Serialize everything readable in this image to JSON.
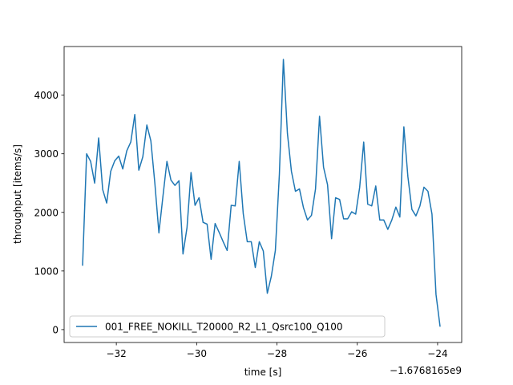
{
  "chart_data": {
    "type": "line",
    "title": "",
    "xlabel": "time [s]",
    "ylabel": "throughput [items/s]",
    "x_offset_label": "−1.6768165e9",
    "xlim": [
      -33.3,
      -23.4
    ],
    "ylim": [
      -220,
      4830
    ],
    "x_ticks": [
      -32,
      -30,
      -28,
      -26,
      -24
    ],
    "x_tick_labels": [
      "−32",
      "−30",
      "−28",
      "−26",
      "−24"
    ],
    "y_ticks": [
      0,
      1000,
      2000,
      3000,
      4000
    ],
    "y_tick_labels": [
      "0",
      "1000",
      "2000",
      "3000",
      "4000"
    ],
    "grid": false,
    "legend_position": "lower-left",
    "series": [
      {
        "name": "001_FREE_NOKILL_T20000_R2_L1_Qsrc100_Q100",
        "color": "#1f77b4",
        "x": [
          -32.84,
          -32.74,
          -32.64,
          -32.54,
          -32.44,
          -32.34,
          -32.24,
          -32.14,
          -32.04,
          -31.94,
          -31.84,
          -31.74,
          -31.64,
          -31.54,
          -31.44,
          -31.34,
          -31.24,
          -31.14,
          -31.04,
          -30.94,
          -30.84,
          -30.74,
          -30.64,
          -30.54,
          -30.44,
          -30.34,
          -30.24,
          -30.14,
          -30.04,
          -29.94,
          -29.84,
          -29.74,
          -29.64,
          -29.54,
          -29.44,
          -29.34,
          -29.24,
          -29.14,
          -29.04,
          -28.94,
          -28.84,
          -28.74,
          -28.64,
          -28.54,
          -28.44,
          -28.34,
          -28.24,
          -28.14,
          -28.04,
          -27.94,
          -27.84,
          -27.74,
          -27.64,
          -27.54,
          -27.44,
          -27.34,
          -27.24,
          -27.14,
          -27.04,
          -26.94,
          -26.84,
          -26.74,
          -26.64,
          -26.54,
          -26.44,
          -26.34,
          -26.24,
          -26.14,
          -26.04,
          -25.94,
          -25.84,
          -25.74,
          -25.64,
          -25.54,
          -25.44,
          -25.34,
          -25.24,
          -25.14,
          -25.04,
          -24.94,
          -24.84,
          -24.74,
          -24.64,
          -24.54,
          -24.44,
          -24.34,
          -24.24,
          -24.14,
          -24.04,
          -23.94
        ],
        "y": [
          1100,
          3000,
          2870,
          2500,
          3270,
          2390,
          2160,
          2700,
          2880,
          2960,
          2740,
          3050,
          3200,
          3670,
          2720,
          2950,
          3490,
          3220,
          2490,
          1650,
          2270,
          2870,
          2550,
          2460,
          2540,
          1290,
          1740,
          2680,
          2120,
          2250,
          1830,
          1800,
          1200,
          1810,
          1660,
          1500,
          1350,
          2120,
          2110,
          2870,
          1980,
          1500,
          1500,
          1060,
          1500,
          1340,
          620,
          910,
          1350,
          2650,
          4610,
          3350,
          2700,
          2360,
          2400,
          2080,
          1870,
          1950,
          2400,
          3640,
          2770,
          2470,
          1550,
          2250,
          2220,
          1890,
          1890,
          2010,
          1970,
          2430,
          3200,
          2140,
          2110,
          2450,
          1870,
          1870,
          1710,
          1870,
          2090,
          1920,
          3460,
          2610,
          2050,
          1940,
          2110,
          2430,
          2360,
          1970,
          600,
          60
        ]
      }
    ]
  }
}
